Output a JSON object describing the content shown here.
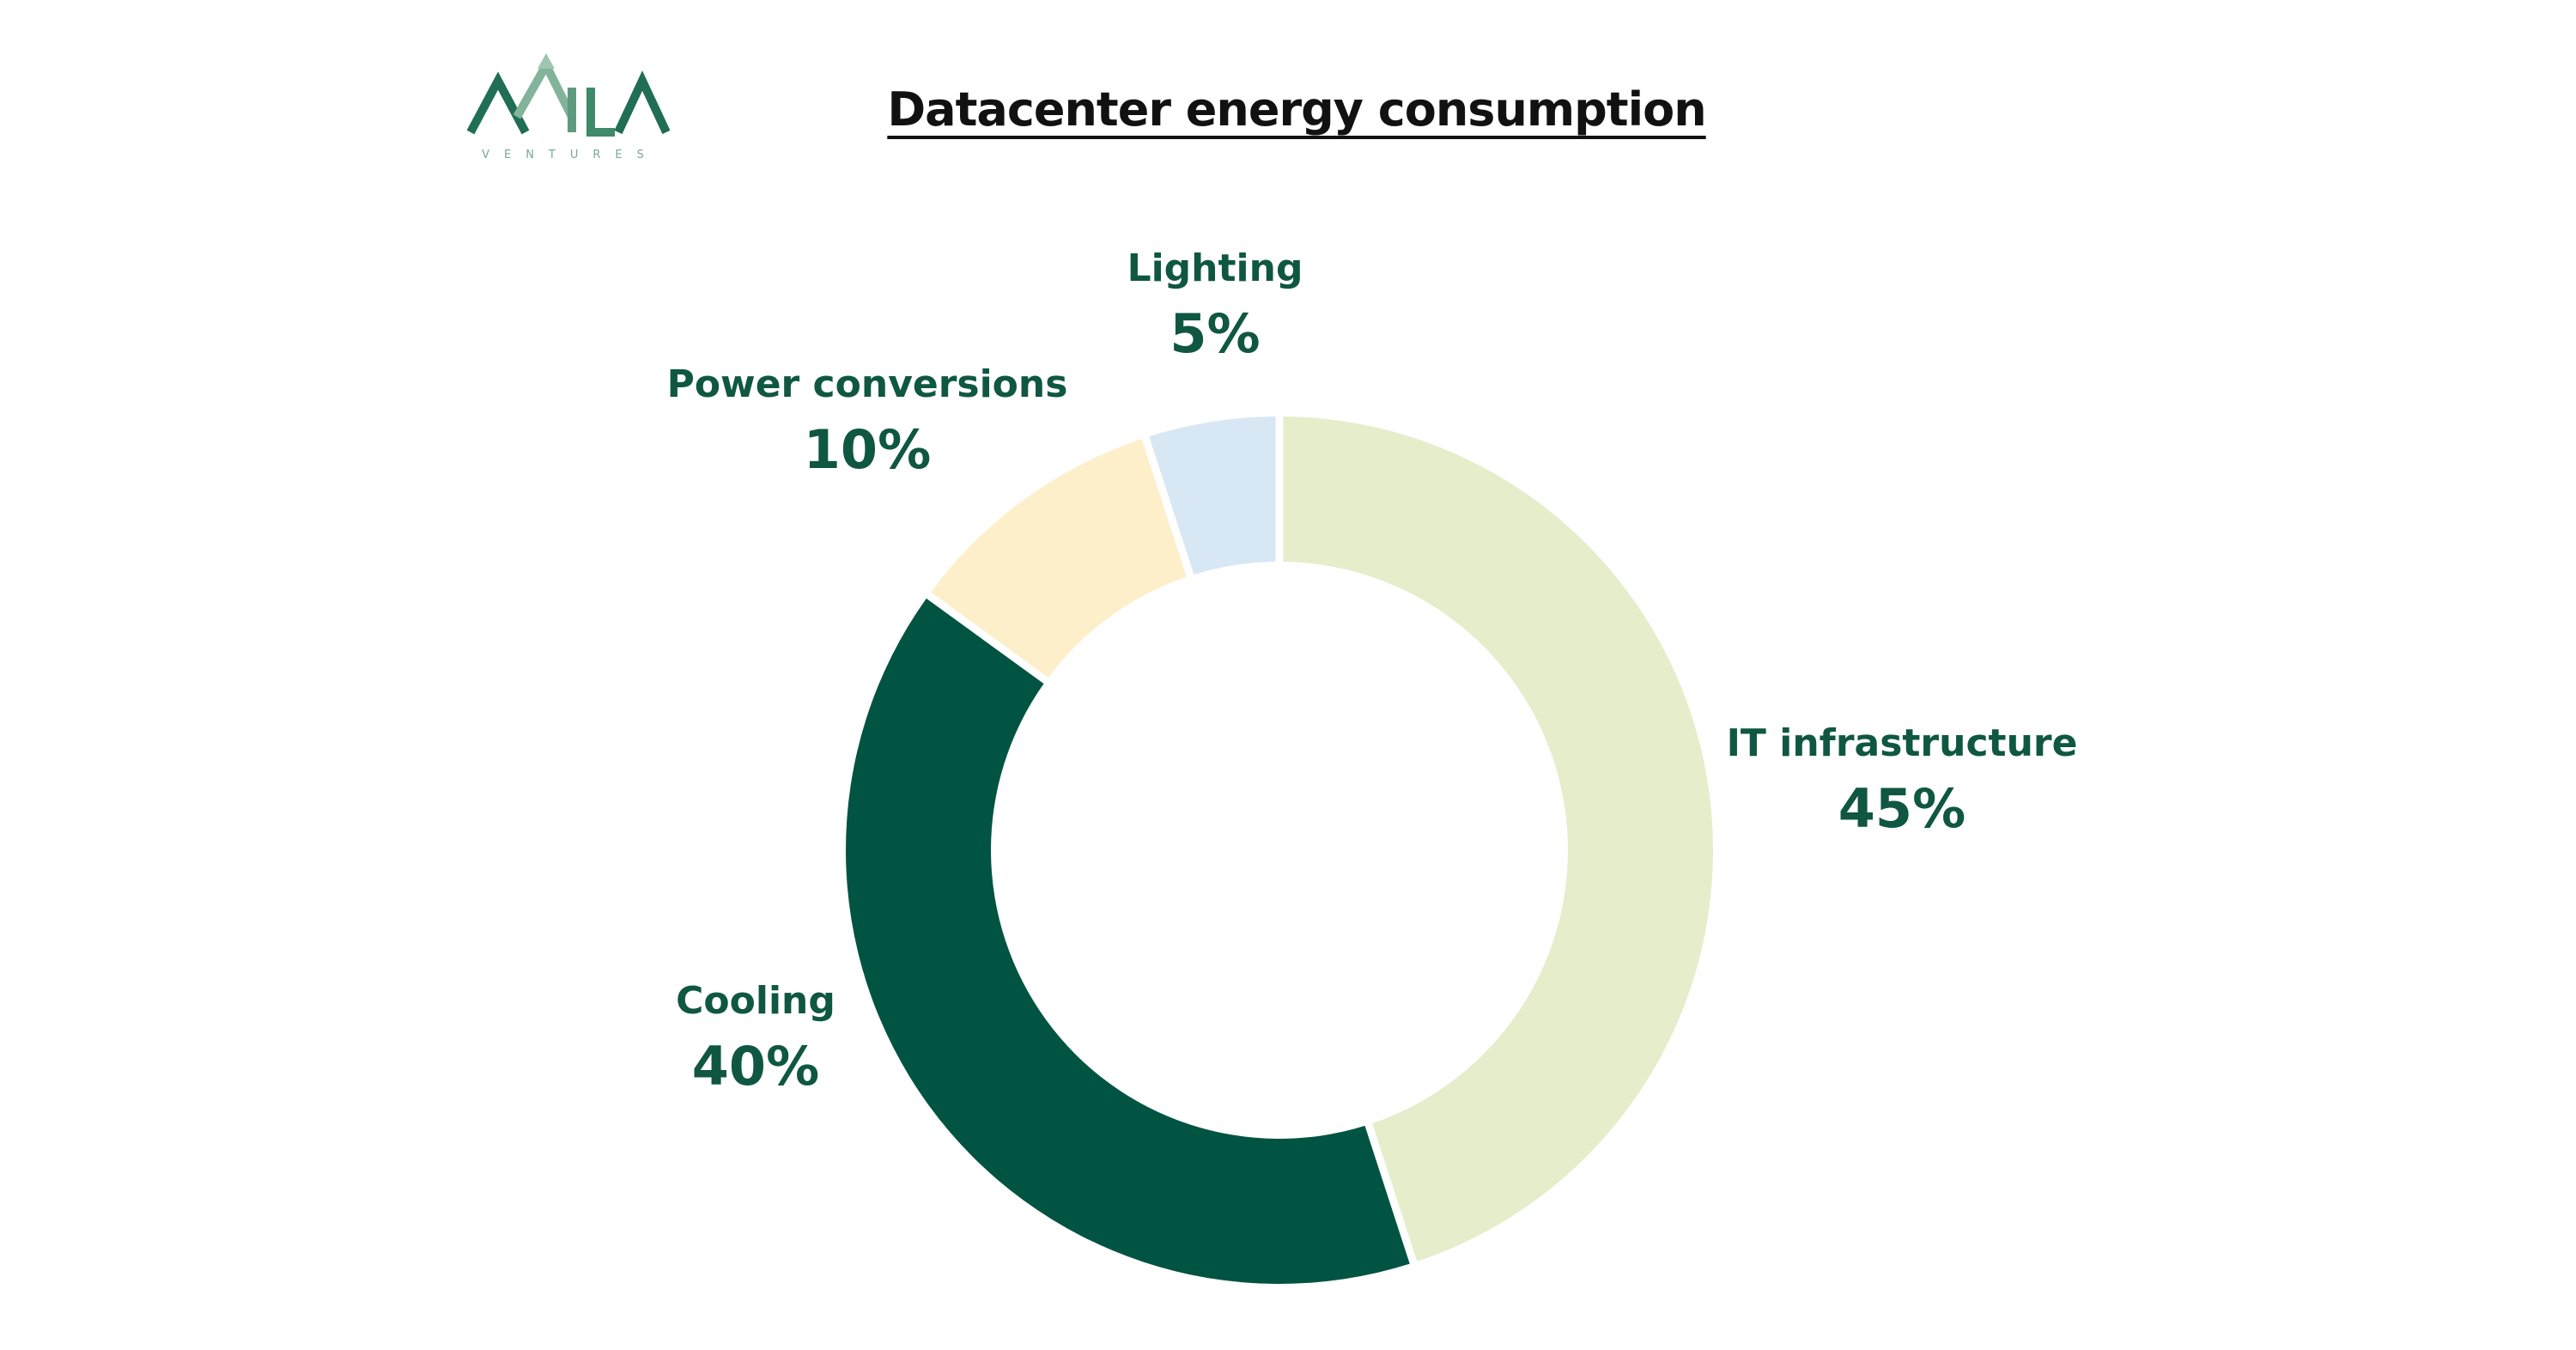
{
  "logo": {
    "wordmark": "VILA",
    "tagline": "VENTURES",
    "colors": [
      "#1f6e55",
      "#82b49b"
    ]
  },
  "chart_data": {
    "type": "pie",
    "style": "donut",
    "title": "Datacenter energy consumption",
    "slices": [
      {
        "label": "IT infrastructure",
        "value": 45,
        "value_label": "45%",
        "color": "#e6edca"
      },
      {
        "label": "Cooling",
        "value": 40,
        "value_label": "40%",
        "color": "#025442"
      },
      {
        "label": "Power conversions",
        "value": 10,
        "value_label": "10%",
        "color": "#fdefc9"
      },
      {
        "label": "Lighting",
        "value": 5,
        "value_label": "5%",
        "color": "#d8e7f4"
      }
    ],
    "legend": "none"
  }
}
